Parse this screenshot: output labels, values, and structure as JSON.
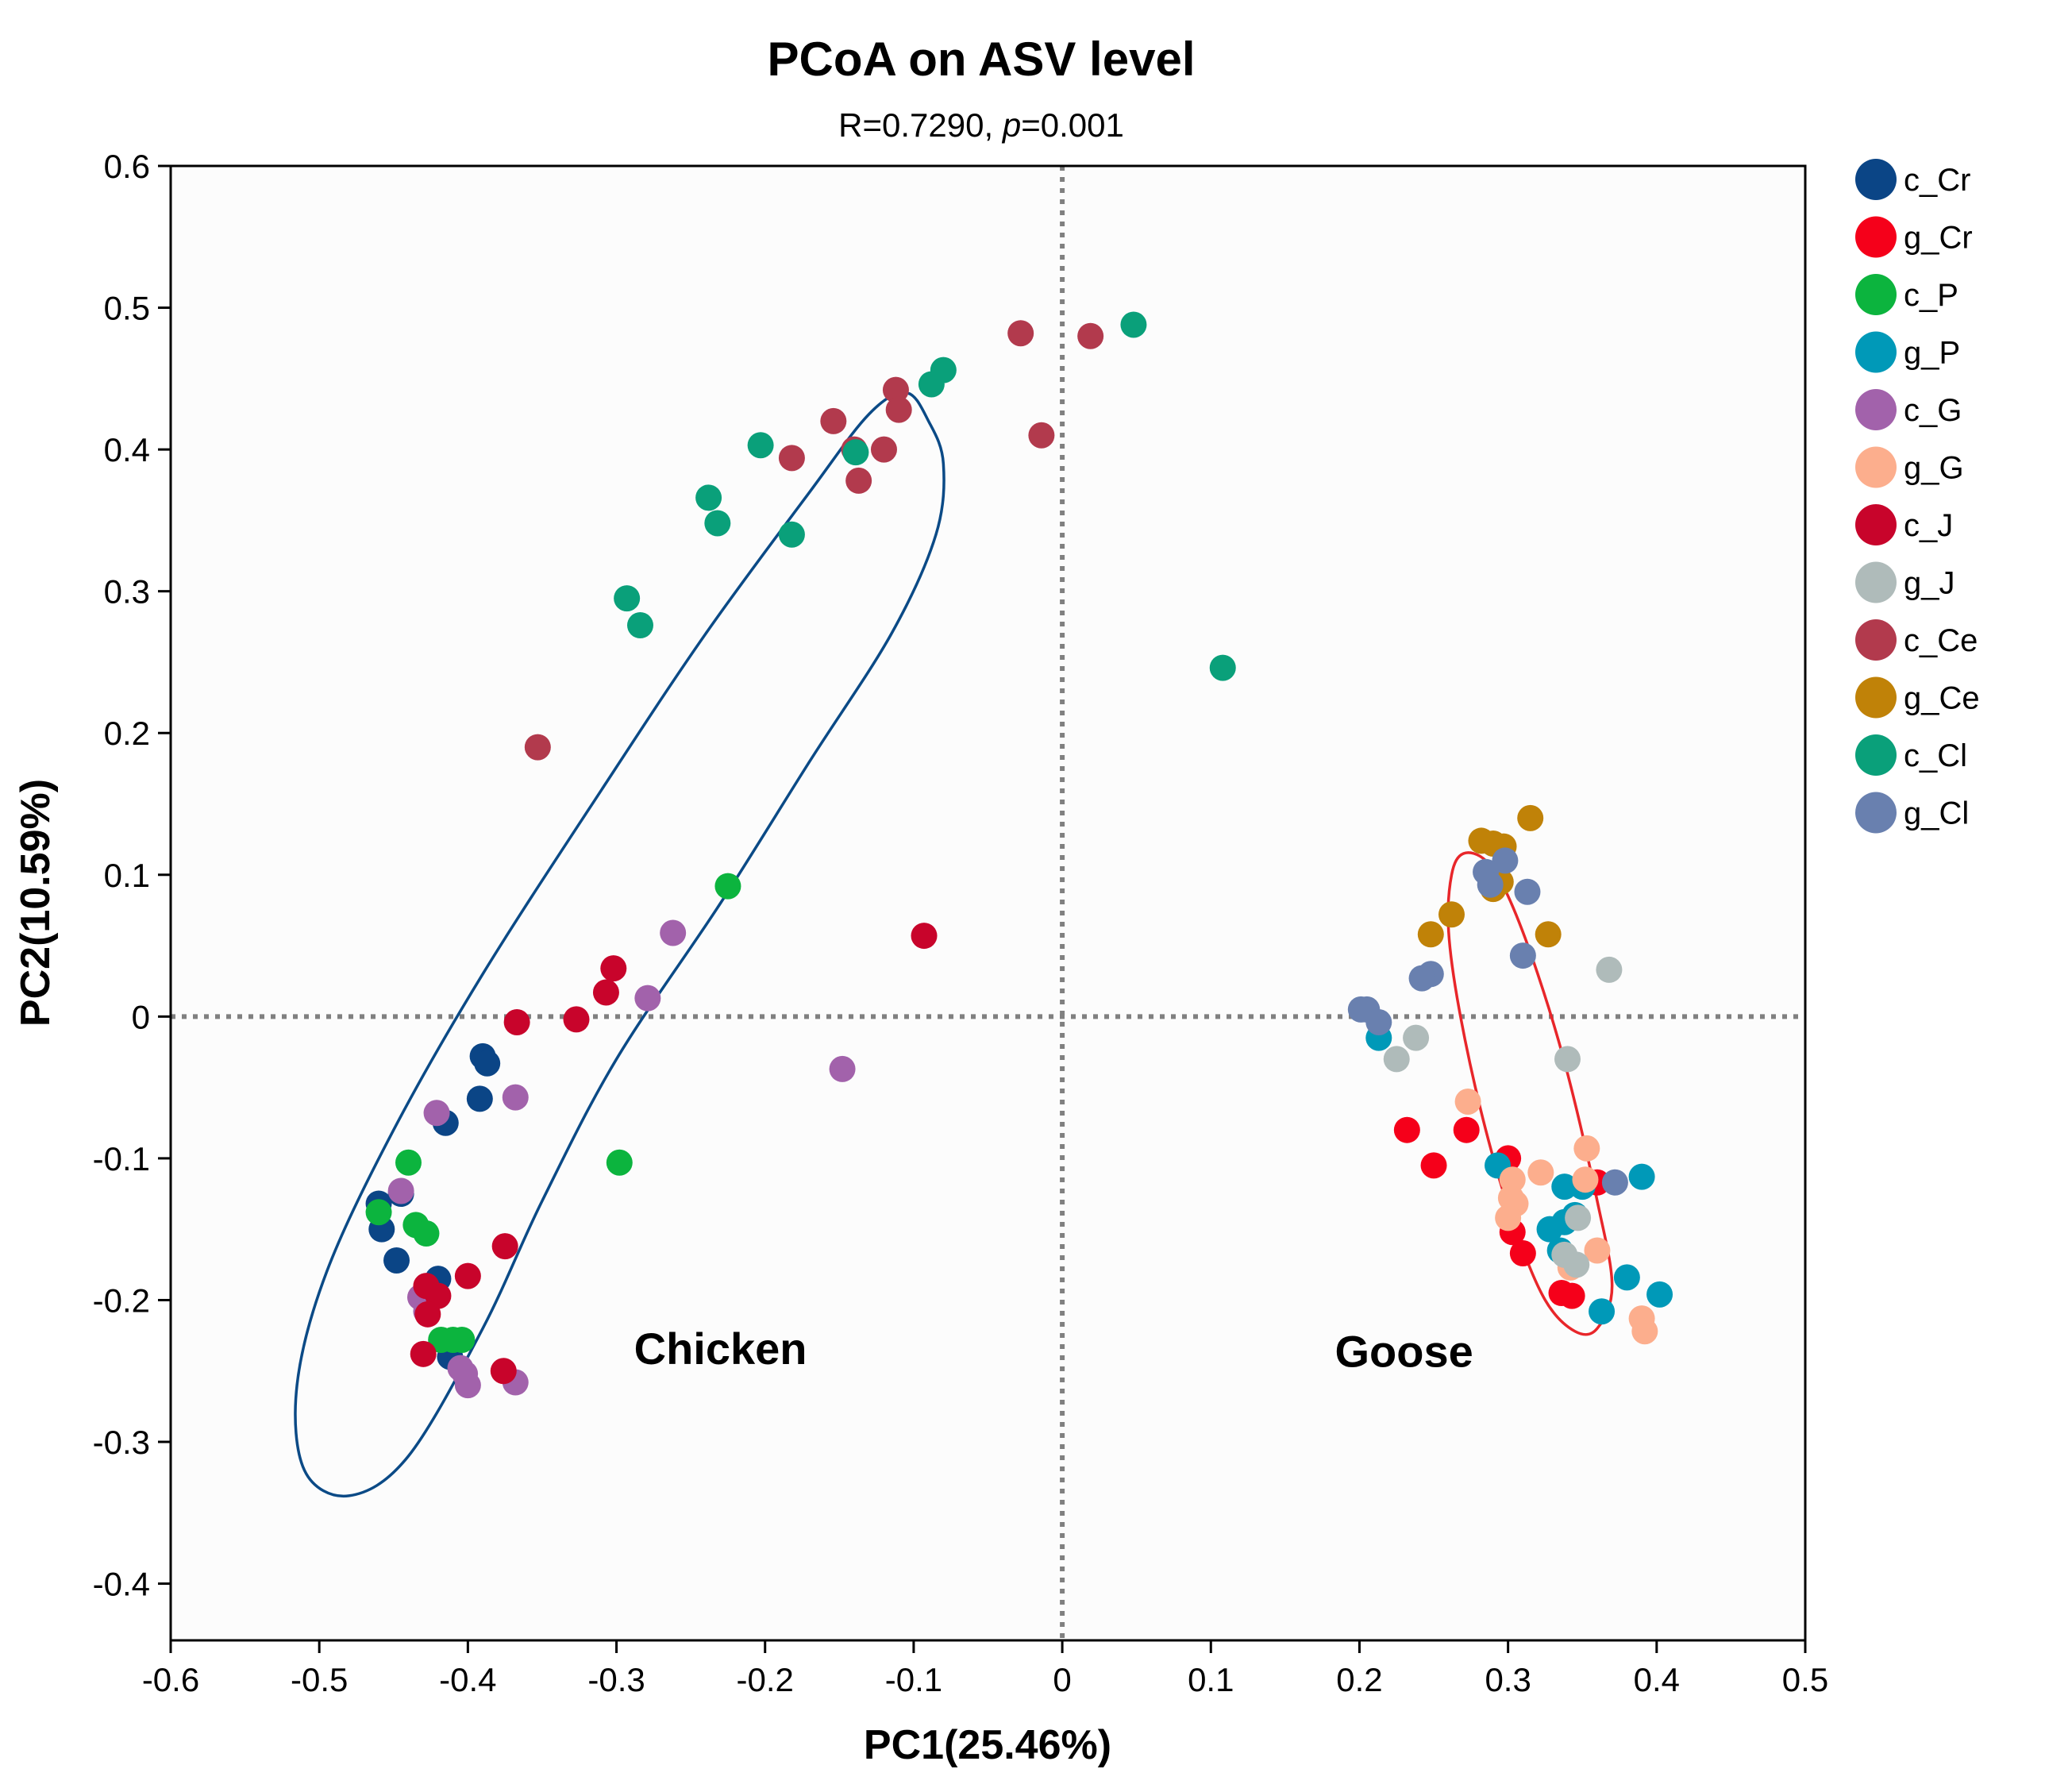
{
  "chart_data": {
    "type": "scatter",
    "title": "PCoA on ASV level",
    "subtitle_prefix": "R=0.7290, ",
    "subtitle_italic": "p",
    "subtitle_suffix": "=0.001",
    "xlabel": "PC1(25.46%)",
    "ylabel": "PC2(10.59%)",
    "xlim": [
      -0.6,
      0.5
    ],
    "ylim": [
      -0.44,
      0.6
    ],
    "xticks": [
      -0.6,
      -0.5,
      -0.4,
      -0.3,
      -0.2,
      -0.1,
      0,
      0.1,
      0.2,
      0.3,
      0.4,
      0.5
    ],
    "xtick_labels": [
      "-0.6",
      "-0.5",
      "-0.4",
      "-0.3",
      "-0.2",
      "-0.1",
      "0",
      "0.1",
      "0.2",
      "0.3",
      "0.4",
      "0.5"
    ],
    "yticks": [
      -0.4,
      -0.3,
      -0.2,
      -0.1,
      0,
      0.1,
      0.2,
      0.3,
      0.4,
      0.5,
      0.6
    ],
    "ytick_labels": [
      "-0.4",
      "-0.3",
      "-0.2",
      "-0.1",
      "0",
      "0.1",
      "0.2",
      "0.3",
      "0.4",
      "0.5",
      "0.6"
    ],
    "grid": false,
    "legend_position": "right",
    "reference_lines": {
      "x": 0,
      "y": 0,
      "color": "#808080"
    },
    "annotations": [
      {
        "text": "Chicken",
        "x": -0.23,
        "y": -0.245
      },
      {
        "text": "Goose",
        "x": 0.23,
        "y": -0.247
      }
    ],
    "ellipses": [
      {
        "group": "Chicken",
        "color": "#0b4a86",
        "points": [
          [
            -0.105,
            0.44
          ],
          [
            -0.09,
            0.42
          ],
          [
            -0.08,
            0.39
          ],
          [
            -0.085,
            0.34
          ],
          [
            -0.115,
            0.27
          ],
          [
            -0.17,
            0.18
          ],
          [
            -0.23,
            0.08
          ],
          [
            -0.3,
            -0.03
          ],
          [
            -0.35,
            -0.13
          ],
          [
            -0.39,
            -0.22
          ],
          [
            -0.44,
            -0.31
          ],
          [
            -0.48,
            -0.338
          ],
          [
            -0.51,
            -0.32
          ],
          [
            -0.515,
            -0.26
          ],
          [
            -0.495,
            -0.18
          ],
          [
            -0.45,
            -0.08
          ],
          [
            -0.39,
            0.03
          ],
          [
            -0.31,
            0.16
          ],
          [
            -0.24,
            0.27
          ],
          [
            -0.17,
            0.37
          ],
          [
            -0.13,
            0.425
          ],
          [
            -0.105,
            0.44
          ]
        ]
      },
      {
        "group": "Goose",
        "color": "#e8262a",
        "points": [
          [
            0.27,
            0.115
          ],
          [
            0.285,
            0.11
          ],
          [
            0.3,
            0.085
          ],
          [
            0.32,
            0.03
          ],
          [
            0.34,
            -0.04
          ],
          [
            0.36,
            -0.13
          ],
          [
            0.37,
            -0.19
          ],
          [
            0.36,
            -0.22
          ],
          [
            0.345,
            -0.222
          ],
          [
            0.325,
            -0.2
          ],
          [
            0.305,
            -0.15
          ],
          [
            0.285,
            -0.08
          ],
          [
            0.268,
            0.0
          ],
          [
            0.26,
            0.06
          ],
          [
            0.262,
            0.1
          ],
          [
            0.27,
            0.115
          ]
        ]
      }
    ],
    "series": [
      {
        "name": "c_Cr",
        "color": "#0b4586",
        "points": [
          [
            -0.39,
            -0.028
          ],
          [
            -0.387,
            -0.033
          ],
          [
            -0.392,
            -0.058
          ],
          [
            -0.415,
            -0.075
          ],
          [
            -0.46,
            -0.132
          ],
          [
            -0.445,
            -0.125
          ],
          [
            -0.458,
            -0.15
          ],
          [
            -0.448,
            -0.172
          ],
          [
            -0.42,
            -0.185
          ],
          [
            -0.412,
            -0.24
          ]
        ]
      },
      {
        "name": "g_Cr",
        "color": "#f5001a",
        "points": [
          [
            0.232,
            -0.08
          ],
          [
            0.272,
            -0.08
          ],
          [
            0.25,
            -0.105
          ],
          [
            0.3,
            -0.1
          ],
          [
            0.303,
            -0.152
          ],
          [
            0.31,
            -0.167
          ],
          [
            0.336,
            -0.195
          ],
          [
            0.343,
            -0.197
          ],
          [
            0.36,
            -0.117
          ]
        ]
      },
      {
        "name": "c_P",
        "color": "#0cb43e",
        "points": [
          [
            -0.225,
            0.092
          ],
          [
            -0.298,
            -0.103
          ],
          [
            -0.44,
            -0.103
          ],
          [
            -0.46,
            -0.138
          ],
          [
            -0.435,
            -0.147
          ],
          [
            -0.428,
            -0.153
          ],
          [
            -0.41,
            -0.228
          ],
          [
            -0.418,
            -0.228
          ],
          [
            -0.404,
            -0.228
          ]
        ]
      },
      {
        "name": "g_P",
        "color": "#0099b8",
        "points": [
          [
            0.213,
            -0.015
          ],
          [
            0.293,
            -0.105
          ],
          [
            0.338,
            -0.12
          ],
          [
            0.35,
            -0.12
          ],
          [
            0.345,
            -0.14
          ],
          [
            0.338,
            -0.145
          ],
          [
            0.328,
            -0.15
          ],
          [
            0.335,
            -0.165
          ],
          [
            0.363,
            -0.208
          ],
          [
            0.38,
            -0.184
          ],
          [
            0.39,
            -0.113
          ],
          [
            0.402,
            -0.196
          ]
        ]
      },
      {
        "name": "c_G",
        "color": "#a262ab",
        "points": [
          [
            -0.262,
            0.059
          ],
          [
            -0.279,
            0.013
          ],
          [
            -0.148,
            -0.037
          ],
          [
            -0.368,
            -0.057
          ],
          [
            -0.421,
            -0.068
          ],
          [
            -0.445,
            -0.123
          ],
          [
            -0.432,
            -0.198
          ],
          [
            -0.428,
            -0.208
          ],
          [
            -0.405,
            -0.248
          ],
          [
            -0.402,
            -0.252
          ],
          [
            -0.4,
            -0.26
          ],
          [
            -0.368,
            -0.258
          ]
        ]
      },
      {
        "name": "g_G",
        "color": "#fcae8d",
        "points": [
          [
            0.273,
            -0.06
          ],
          [
            0.303,
            -0.115
          ],
          [
            0.302,
            -0.128
          ],
          [
            0.305,
            -0.132
          ],
          [
            0.3,
            -0.142
          ],
          [
            0.322,
            -0.11
          ],
          [
            0.353,
            -0.093
          ],
          [
            0.352,
            -0.115
          ],
          [
            0.36,
            -0.165
          ],
          [
            0.342,
            -0.177
          ],
          [
            0.39,
            -0.213
          ],
          [
            0.392,
            -0.222
          ]
        ]
      },
      {
        "name": "c_J",
        "color": "#c8042b",
        "points": [
          [
            -0.093,
            0.057
          ],
          [
            -0.302,
            0.034
          ],
          [
            -0.307,
            0.017
          ],
          [
            -0.327,
            -0.002
          ],
          [
            -0.367,
            -0.004
          ],
          [
            -0.375,
            -0.162
          ],
          [
            -0.4,
            -0.183
          ],
          [
            -0.428,
            -0.19
          ],
          [
            -0.42,
            -0.197
          ],
          [
            -0.427,
            -0.21
          ],
          [
            -0.43,
            -0.238
          ],
          [
            -0.376,
            -0.25
          ]
        ]
      },
      {
        "name": "g_J",
        "color": "#afbbba",
        "points": [
          [
            0.368,
            0.033
          ],
          [
            0.34,
            -0.03
          ],
          [
            0.238,
            -0.015
          ],
          [
            0.225,
            -0.03
          ],
          [
            0.347,
            -0.142
          ],
          [
            0.338,
            -0.168
          ],
          [
            0.346,
            -0.175
          ]
        ]
      },
      {
        "name": "c_Ce",
        "color": "#b23a4d",
        "points": [
          [
            -0.028,
            0.482
          ],
          [
            0.019,
            0.48
          ],
          [
            -0.112,
            0.442
          ],
          [
            -0.11,
            0.428
          ],
          [
            -0.154,
            0.42
          ],
          [
            -0.14,
            0.4
          ],
          [
            -0.12,
            0.4
          ],
          [
            -0.182,
            0.394
          ],
          [
            -0.137,
            0.378
          ],
          [
            -0.014,
            0.41
          ],
          [
            -0.353,
            0.19
          ]
        ]
      },
      {
        "name": "g_Ce",
        "color": "#c08208",
        "points": [
          [
            0.315,
            0.14
          ],
          [
            0.282,
            0.124
          ],
          [
            0.29,
            0.122
          ],
          [
            0.297,
            0.12
          ],
          [
            0.295,
            0.095
          ],
          [
            0.29,
            0.09
          ],
          [
            0.262,
            0.072
          ],
          [
            0.248,
            0.058
          ],
          [
            0.327,
            0.058
          ]
        ]
      },
      {
        "name": "c_Cl",
        "color": "#0aa07a",
        "points": [
          [
            0.048,
            0.488
          ],
          [
            -0.08,
            0.456
          ],
          [
            -0.088,
            0.446
          ],
          [
            -0.203,
            0.403
          ],
          [
            -0.139,
            0.398
          ],
          [
            -0.238,
            0.366
          ],
          [
            -0.232,
            0.348
          ],
          [
            -0.182,
            0.34
          ],
          [
            -0.293,
            0.295
          ],
          [
            -0.284,
            0.276
          ],
          [
            0.108,
            0.246
          ]
        ]
      },
      {
        "name": "g_Cl",
        "color": "#6980af",
        "points": [
          [
            0.298,
            0.11
          ],
          [
            0.285,
            0.102
          ],
          [
            0.288,
            0.093
          ],
          [
            0.313,
            0.088
          ],
          [
            0.31,
            0.043
          ],
          [
            0.248,
            0.03
          ],
          [
            0.242,
            0.027
          ],
          [
            0.201,
            0.005
          ],
          [
            0.205,
            0.005
          ],
          [
            0.213,
            -0.004
          ],
          [
            0.372,
            -0.117
          ]
        ]
      }
    ]
  }
}
